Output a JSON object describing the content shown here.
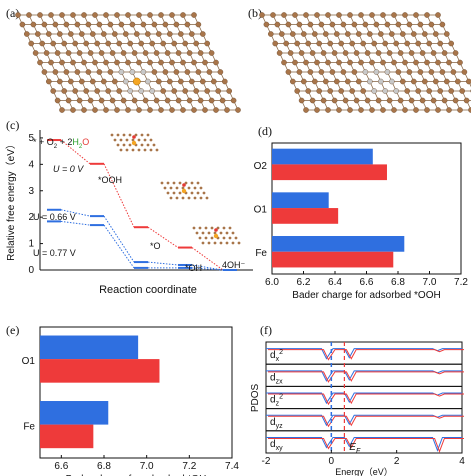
{
  "panels": {
    "a": "(a)",
    "b": "(b)",
    "c": "(c)",
    "d": "(d)",
    "e": "(e)",
    "f": "(f)"
  },
  "colors": {
    "blue": "#2f6fe0",
    "red": "#ee3a3a",
    "carbon": "#a8754a",
    "nitrogen": "#c8c8c8",
    "oxygen": "#e53935",
    "fe": "#f5a623",
    "hydrogen_text": "#2ca02c"
  },
  "panel_c": {
    "ylabel": "Relative free energy（eV）",
    "xlabel": "Reaction coordinate",
    "yticks": [
      "0",
      "1",
      "2",
      "3",
      "4",
      "5"
    ],
    "annotations": {
      "start": "* + O",
      "o2_sub": "2",
      "plus": " + 2",
      "h2o": "H",
      "h2o_sub": "2",
      "h2o_o": "O",
      "u0": "U = 0 V",
      "u066": "U = 0.66 V",
      "u077": "U = 0.77 V",
      "ooh": "*OOH",
      "o": "*O",
      "oh": "*OH",
      "end": "4OH⁻"
    }
  },
  "chart_data": [
    {
      "id": "c",
      "type": "line",
      "xlabel": "Reaction coordinate",
      "ylabel": "Relative free energy（eV）",
      "ylim": [
        0,
        5.3
      ],
      "categories": [
        "* + O2 + 2H2O",
        "*OOH",
        "*O",
        "*OH",
        "4OH-"
      ],
      "series": [
        {
          "name": "U = 0 V",
          "values": [
            4.92,
            4.02,
            1.62,
            0.85,
            0.0
          ],
          "color": "#ee3a3a"
        },
        {
          "name": "U = 0.66 V",
          "values": [
            2.28,
            2.04,
            0.3,
            0.19,
            0.0
          ],
          "color": "#2f6fe0"
        },
        {
          "name": "U = 0.77 V",
          "values": [
            1.84,
            1.7,
            0.08,
            0.08,
            0.0
          ],
          "color": "#2f6fe0"
        }
      ]
    },
    {
      "id": "d",
      "type": "bar",
      "xlabel": "Bader charge for adsorbed *OOH",
      "categories": [
        "Fe",
        "O1",
        "O2"
      ],
      "xlim": [
        6.0,
        7.2
      ],
      "xticks": [
        "6.0",
        "6.2",
        "6.4",
        "6.6",
        "6.8",
        "7.0",
        "7.2"
      ],
      "series": [
        {
          "values": [
            6.84,
            6.36,
            6.64
          ],
          "color": "#2f6fe0"
        },
        {
          "values": [
            6.77,
            6.42,
            6.73
          ],
          "color": "#ee3a3a"
        }
      ]
    },
    {
      "id": "e",
      "type": "bar",
      "xlabel": "Bader charge for adsorbed *OH",
      "categories": [
        "Fe",
        "O1"
      ],
      "xlim": [
        6.5,
        7.4
      ],
      "xticks": [
        "6.6",
        "6.8",
        "7.0",
        "7.2",
        "7.4"
      ],
      "series": [
        {
          "values": [
            6.82,
            6.96
          ],
          "color": "#2f6fe0"
        },
        {
          "values": [
            6.75,
            7.06
          ],
          "color": "#ee3a3a"
        }
      ]
    },
    {
      "id": "f",
      "type": "line",
      "xlabel": "Energy（eV）",
      "ylabel": "PDOS",
      "xlim": [
        -2,
        4
      ],
      "xticks": [
        "-2",
        "0",
        "2",
        "4"
      ],
      "rows": [
        "dx2",
        "dzx",
        "dz2",
        "dyz",
        "dxy"
      ],
      "row_labels": [
        "d",
        "d",
        "d",
        "d",
        "d"
      ],
      "row_subs": [
        "x",
        "zx",
        "z",
        "yz",
        "xy"
      ],
      "row_sups": [
        "2",
        "",
        "2",
        "",
        ""
      ],
      "fermi_label": "E",
      "fermi_sub": "F"
    }
  ]
}
